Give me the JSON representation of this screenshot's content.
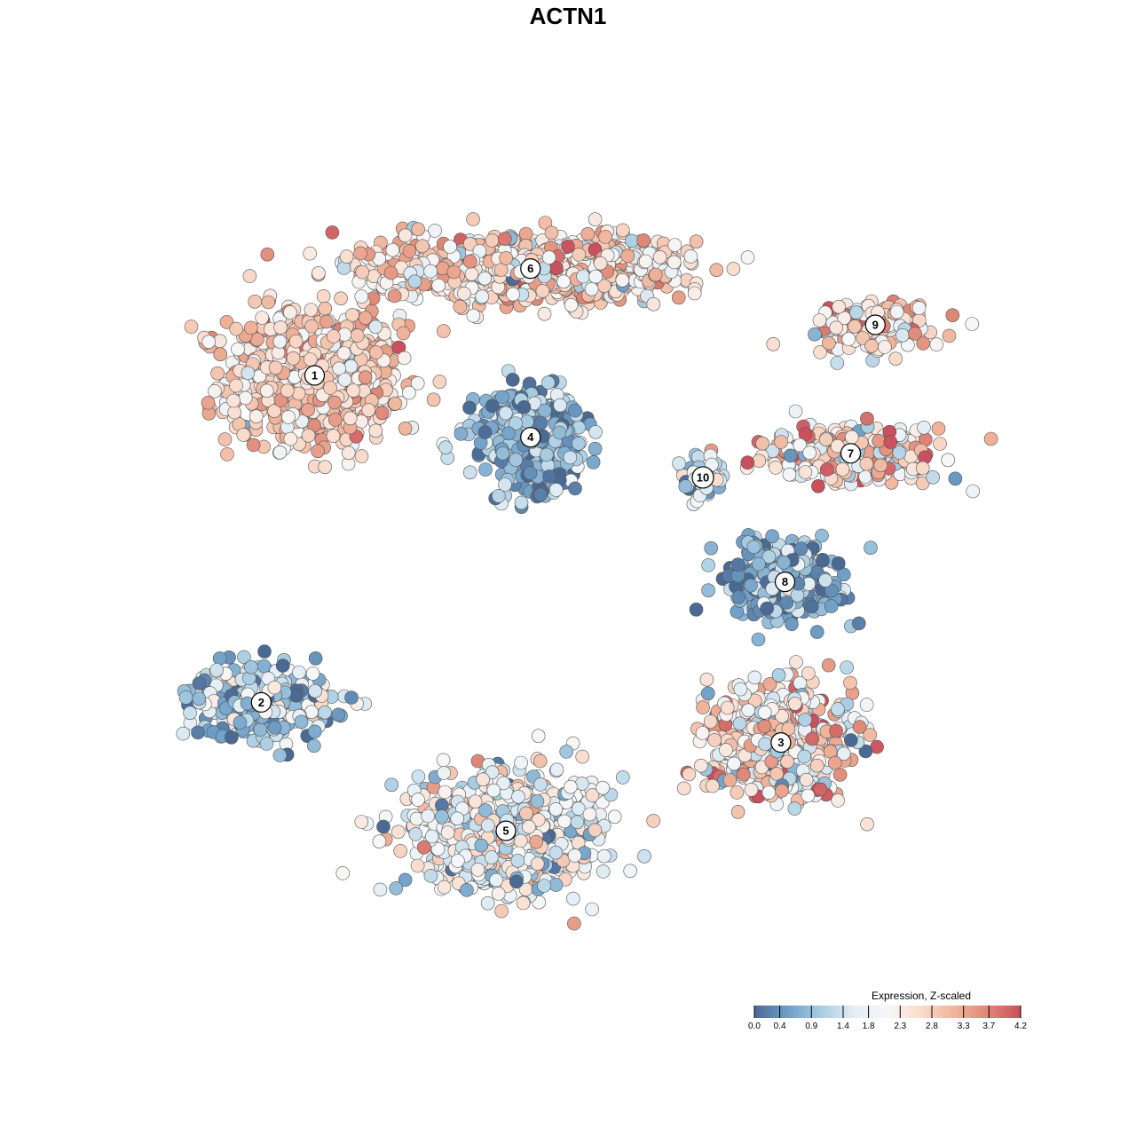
{
  "chart_data": {
    "type": "scatter",
    "title": "ACTN1",
    "xlabel": "",
    "ylabel": "",
    "grid": false,
    "legend": {
      "title": "Expression, Z-scaled",
      "placement": "bottom-right",
      "ticks": [
        "0.0",
        "0.4",
        "0.9",
        "1.4",
        "1.8",
        "2.3",
        "2.8",
        "3.3",
        "3.7",
        "4.2"
      ],
      "min": 0.0,
      "max": 4.2
    },
    "color_scale": [
      "#4a6a94",
      "#6f9fc8",
      "#a9cde2",
      "#e3eef5",
      "#f7f7f7",
      "#f9dccd",
      "#f0b49b",
      "#df8878",
      "#c9505c"
    ],
    "xlim": [
      0,
      100
    ],
    "ylim": [
      0,
      100
    ],
    "clusters": [
      {
        "label": "1",
        "x": 16.7,
        "y": 73.7,
        "sx": 9.5,
        "sy": 7.5,
        "mean": 2.75,
        "spread": 0.5,
        "n": 900
      },
      {
        "label": "2",
        "x": 10.2,
        "y": 33.0,
        "sx": 8.0,
        "sy": 4.0,
        "mean": 1.1,
        "spread": 0.8,
        "n": 350
      },
      {
        "label": "3",
        "x": 73.5,
        "y": 28.0,
        "sx": 8.0,
        "sy": 6.0,
        "mean": 2.3,
        "spread": 0.9,
        "n": 650
      },
      {
        "label": "4",
        "x": 43.0,
        "y": 66.0,
        "sx": 5.5,
        "sy": 5.0,
        "mean": 0.7,
        "spread": 0.5,
        "n": 520
      },
      {
        "label": "5",
        "x": 40.0,
        "y": 17.0,
        "sx": 10.0,
        "sy": 6.5,
        "mean": 1.9,
        "spread": 0.7,
        "n": 850
      },
      {
        "label": "6",
        "x": 43.0,
        "y": 87.0,
        "sx": 17.0,
        "sy": 3.5,
        "mean": 2.5,
        "spread": 0.7,
        "n": 1000
      },
      {
        "label": "7",
        "x": 82.0,
        "y": 64.0,
        "sx": 10.0,
        "sy": 3.0,
        "mean": 2.5,
        "spread": 0.8,
        "n": 330
      },
      {
        "label": "8",
        "x": 74.0,
        "y": 48.0,
        "sx": 6.0,
        "sy": 4.0,
        "mean": 0.7,
        "spread": 0.6,
        "n": 380
      },
      {
        "label": "9",
        "x": 85.0,
        "y": 80.0,
        "sx": 7.0,
        "sy": 2.8,
        "mean": 2.6,
        "spread": 0.8,
        "n": 160
      },
      {
        "label": "10",
        "x": 64.0,
        "y": 61.0,
        "sx": 2.0,
        "sy": 2.8,
        "mean": 1.4,
        "spread": 0.7,
        "n": 70
      }
    ]
  }
}
